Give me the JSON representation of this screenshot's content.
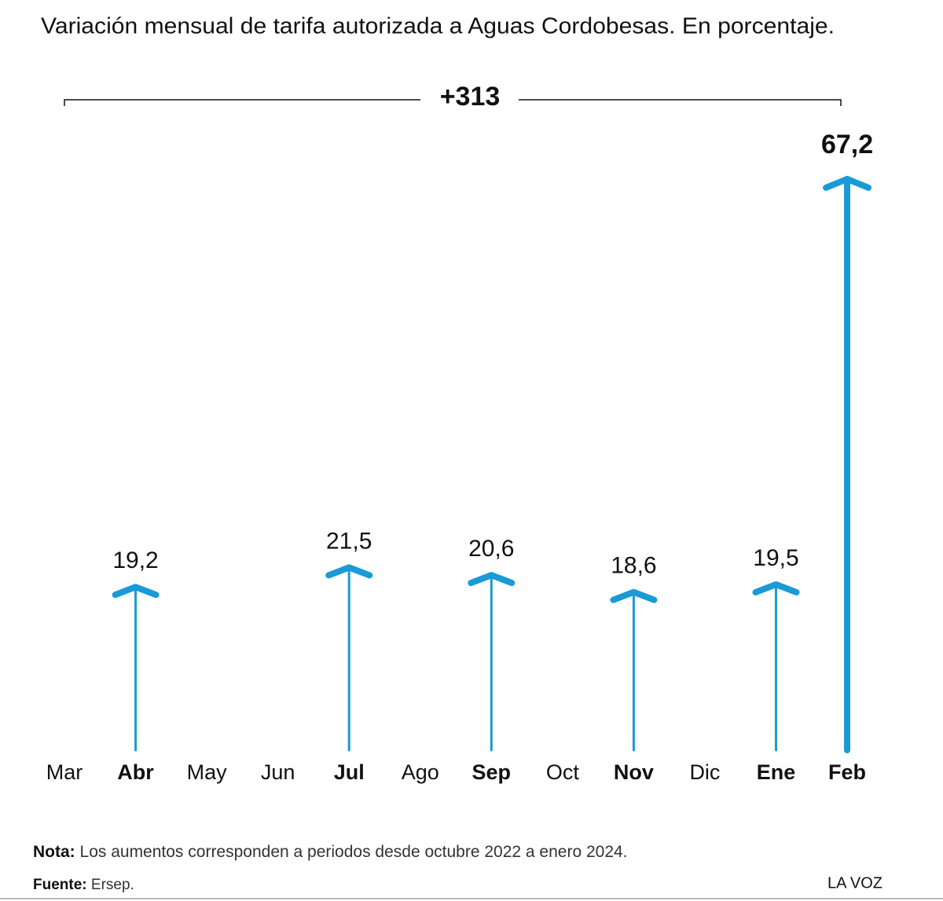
{
  "chart_data": {
    "type": "arrow",
    "title": "Variación mensual de tarifa autorizada a Aguas Cordobesas. En porcentaje.",
    "total_label": "+313",
    "categories": [
      "Mar",
      "Abr",
      "May",
      "Jun",
      "Jul",
      "Ago",
      "Sep",
      "Oct",
      "Nov",
      "Dic",
      "Ene",
      "Feb"
    ],
    "values": [
      null,
      19.2,
      null,
      null,
      21.5,
      null,
      20.6,
      null,
      18.6,
      null,
      19.5,
      67.2
    ],
    "value_labels": [
      null,
      "19,2",
      null,
      null,
      "21,5",
      null,
      "20,6",
      null,
      "18,6",
      null,
      "19,5",
      "67,2"
    ],
    "color": "#1a9ad6",
    "note_label": "Nota:",
    "note": "Los aumentos corresponden a periodos desde octubre 2022 a enero 2024.",
    "source_label": "Fuente:",
    "source": "Ersep.",
    "credit": "LA VOZ"
  }
}
